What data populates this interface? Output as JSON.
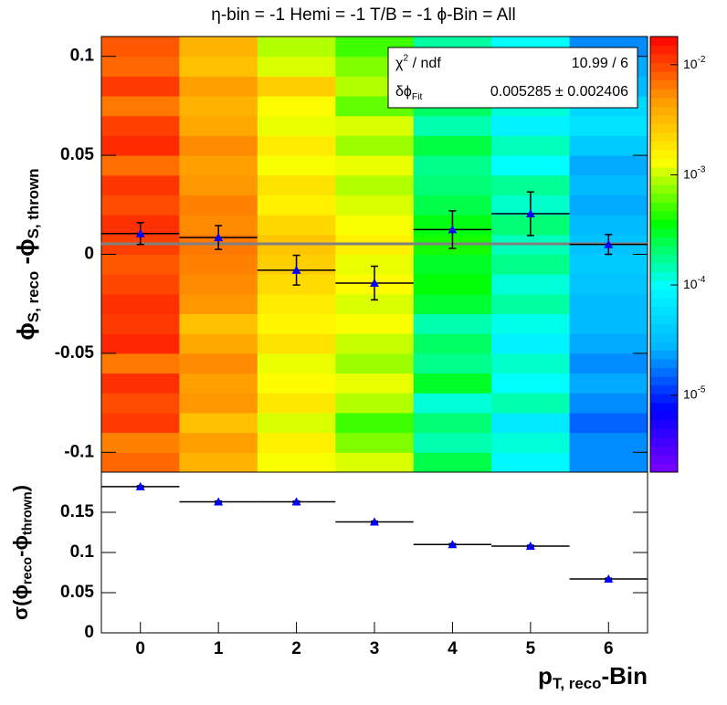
{
  "chart_data": [
    {
      "type": "heatmap",
      "title": "η-bin = -1 Hemi = -1 T/B = -1  ϕ-Bin = All",
      "ylabel": [
        {
          "text": "ϕ"
        },
        {
          "sub": "S, reco"
        },
        {
          "text": " -ϕ"
        },
        {
          "sub": "S, thrown"
        }
      ],
      "xlim": [
        -0.5,
        6.5
      ],
      "ylim": [
        -0.11,
        0.11
      ],
      "yticks": [
        -0.1,
        -0.05,
        0,
        0.05,
        0.1
      ],
      "xbins": [
        -0.5,
        0.5,
        1.5,
        2.5,
        3.5,
        4.5,
        5.5,
        6.5
      ],
      "ybins": [
        -0.11,
        -0.1,
        -0.09,
        -0.08,
        -0.07,
        -0.06,
        -0.05,
        -0.04,
        -0.03,
        -0.02,
        -0.01,
        0,
        0.01,
        0.02,
        0.03,
        0.04,
        0.05,
        0.06,
        0.07,
        0.08,
        0.09,
        0.1,
        0.11
      ],
      "z": [
        [
          0.0075,
          0.006,
          0.011,
          0.0095,
          0.012,
          0.0065,
          0.013,
          0.011,
          0.012,
          0.01,
          0.0085,
          0.0105,
          0.012,
          0.0095,
          0.0115,
          0.007,
          0.0125,
          0.0105,
          0.0065,
          0.011,
          0.0075,
          0.0085
        ],
        [
          0.0035,
          0.0045,
          0.003,
          0.005,
          0.0045,
          0.0055,
          0.004,
          0.003,
          0.005,
          0.0055,
          0.006,
          0.0065,
          0.0055,
          0.006,
          0.005,
          0.0045,
          0.0055,
          0.004,
          0.0035,
          0.0045,
          0.003,
          0.0035
        ],
        [
          0.0013,
          0.0016,
          0.0011,
          0.0018,
          0.0014,
          0.0012,
          0.0019,
          0.0015,
          0.0017,
          0.0021,
          0.0025,
          0.0028,
          0.0022,
          0.0016,
          0.0019,
          0.0013,
          0.0017,
          0.0012,
          0.0014,
          0.0025,
          0.0011,
          0.0009
        ],
        [
          0.0011,
          0.0007,
          0.0005,
          0.0009,
          0.0012,
          0.0008,
          0.001,
          0.0013,
          0.0011,
          0.0014,
          0.0012,
          0.0016,
          0.0013,
          0.0011,
          0.0009,
          0.0012,
          0.0008,
          0.0011,
          0.0006,
          0.0009,
          0.0007,
          0.0005
        ],
        [
          0.00025,
          0.00015,
          0.0002,
          0.00012,
          0.0003,
          0.00018,
          0.00022,
          0.00015,
          0.00028,
          0.00035,
          0.0003,
          0.0004,
          0.00033,
          0.00025,
          0.0002,
          0.00018,
          0.00026,
          0.00015,
          0.00022,
          0.00013,
          0.00018,
          0.00016
        ],
        [
          9e-05,
          0.00012,
          7e-05,
          0.00015,
          0.0001,
          0.00013,
          8e-05,
          0.00011,
          0.00016,
          0.00012,
          0.00018,
          0.00014,
          0.0002,
          0.00013,
          0.00017,
          0.0001,
          0.00014,
          8e-05,
          0.00012,
          9e-05,
          0.00011,
          0.0001
        ],
        [
          2e-05,
          2e-05,
          1.5e-05,
          2e-05,
          2.5e-05,
          2e-05,
          2.5e-05,
          3e-05,
          3e-05,
          3.5e-05,
          4e-05,
          3.5e-05,
          3e-05,
          2.5e-05,
          3e-05,
          2.5e-05,
          4e-05,
          6e-05,
          5e-05,
          3e-05,
          2.5e-05,
          2e-05
        ]
      ],
      "zlim": [
        2e-06,
        0.018
      ],
      "log_z": true,
      "zticks": [
        {
          "value": 1e-05,
          "label": "10-5"
        },
        {
          "value": 0.0001,
          "label": "10-4"
        },
        {
          "value": 0.001,
          "label": "10-3"
        },
        {
          "value": 0.01,
          "label": "10-2"
        }
      ],
      "colorscale": [
        "#7f00ff",
        "#0000ff",
        "#00b4ff",
        "#00ffff",
        "#00ff00",
        "#ffff00",
        "#ff9900",
        "#ff0000"
      ],
      "points": {
        "color": "#0000ff",
        "x": [
          0,
          1,
          2,
          3,
          4,
          5,
          6
        ],
        "y": [
          0.0105,
          0.0085,
          -0.008,
          -0.0145,
          0.0125,
          0.0205,
          0.005
        ],
        "yerr": [
          0.0055,
          0.006,
          0.0075,
          0.0085,
          0.0095,
          0.011,
          0.005
        ],
        "xerr": [
          0.5,
          0.5,
          0.5,
          0.5,
          0.5,
          0.5,
          0.5
        ]
      },
      "fit": {
        "value": 0.005285,
        "color": "#808080"
      },
      "stats": [
        {
          "label": [
            {
              "text": "χ"
            },
            {
              "sup": "2"
            },
            {
              "text": " / ndf"
            }
          ],
          "value": "10.99 / 6"
        },
        {
          "label": [
            {
              "text": "δϕ"
            },
            {
              "sub": "Fit"
            }
          ],
          "value": "0.005285 ± 0.002406"
        }
      ]
    },
    {
      "type": "scatter",
      "ylabel": [
        {
          "text": "σ(ϕ"
        },
        {
          "sub": "reco"
        },
        {
          "text": "-ϕ"
        },
        {
          "sub": "thrown"
        },
        {
          "text": ")"
        }
      ],
      "xlabel": [
        {
          "text": "p"
        },
        {
          "sub": "T, reco"
        },
        {
          "text": "-Bin"
        }
      ],
      "xlim": [
        -0.5,
        6.5
      ],
      "xticks": [
        0,
        1,
        2,
        3,
        4,
        5,
        6
      ],
      "ylim": [
        0,
        0.2
      ],
      "yticks": [
        0,
        0.05,
        0.1,
        0.15
      ],
      "points": {
        "color": "#0000ff",
        "x": [
          0,
          1,
          2,
          3,
          4,
          5,
          6
        ],
        "y": [
          0.182,
          0.163,
          0.163,
          0.138,
          0.11,
          0.108,
          0.067
        ],
        "yerr": [
          0.001,
          0.001,
          0.001,
          0.001,
          0.001,
          0.001,
          0.001
        ],
        "xerr": [
          0.5,
          0.5,
          0.5,
          0.5,
          0.5,
          0.5,
          0.5
        ]
      }
    }
  ]
}
